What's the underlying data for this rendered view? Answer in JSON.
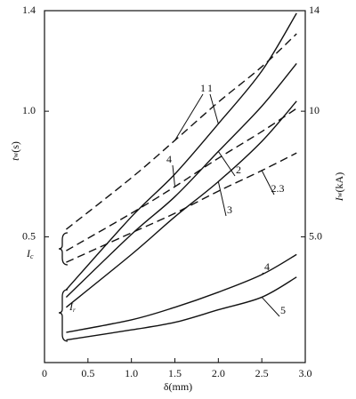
{
  "chart_data": {
    "type": "line",
    "x_label": {
      "text": "δ",
      "unit": "(mm)"
    },
    "y_label": {
      "text": "t",
      "sub": "w",
      "unit": "(s)"
    },
    "y2_label": {
      "text": "I",
      "sub": "w",
      "unit": "(kA)"
    },
    "annotations": [
      {
        "text": "I",
        "sub": "c"
      },
      {
        "text": "I",
        "sub": "r"
      }
    ],
    "x": [
      0.25,
      1.0,
      1.5,
      2.0,
      2.5,
      2.9
    ],
    "xlim": [
      0,
      3
    ],
    "xticks": [
      0,
      0.5,
      {
        "value": 1,
        "label": "1.0"
      },
      1.5,
      {
        "value": 2,
        "label": "2.0"
      },
      2.5,
      {
        "value": 3,
        "label": "3.0"
      }
    ],
    "ylim": [
      0,
      1.4
    ],
    "yticks": [
      0.5,
      {
        "value": 1,
        "label": "1.0"
      },
      1.4
    ],
    "y2lim": [
      0,
      14
    ],
    "y2ticks": [
      {
        "value": 5,
        "label": "5.0"
      },
      10,
      14
    ],
    "series": [
      {
        "name": "1",
        "color": "#111",
        "dash": true,
        "axis": "y2",
        "values": [
          5.3,
          7.35,
          8.84,
          10.36,
          11.77,
          13.08
        ]
      },
      {
        "name": "4",
        "color": "#111",
        "dash": true,
        "axis": "y2",
        "values": [
          4.45,
          5.94,
          7.0,
          8.13,
          9.19,
          10.11
        ]
      },
      {
        "name": "2.3",
        "color": "#111",
        "dash": true,
        "axis": "y2",
        "values": [
          3.99,
          5.16,
          5.94,
          6.82,
          7.64,
          8.34
        ]
      },
      {
        "name": "1",
        "color": "#111",
        "dash": false,
        "values": [
          0.29,
          0.58,
          0.75,
          0.95,
          1.16,
          1.39
        ]
      },
      {
        "name": "2",
        "color": "#111",
        "dash": false,
        "values": [
          0.26,
          0.51,
          0.66,
          0.84,
          1.02,
          1.19
        ]
      },
      {
        "name": "3",
        "color": "#111",
        "dash": false,
        "values": [
          0.22,
          0.43,
          0.58,
          0.72,
          0.88,
          1.04
        ]
      },
      {
        "name": "4",
        "color": "#111",
        "dash": false,
        "values": [
          0.12,
          0.17,
          0.22,
          0.28,
          0.35,
          0.43
        ]
      },
      {
        "name": "5",
        "color": "#111",
        "dash": false,
        "values": [
          0.09,
          0.13,
          0.16,
          0.21,
          0.26,
          0.34
        ]
      }
    ]
  }
}
